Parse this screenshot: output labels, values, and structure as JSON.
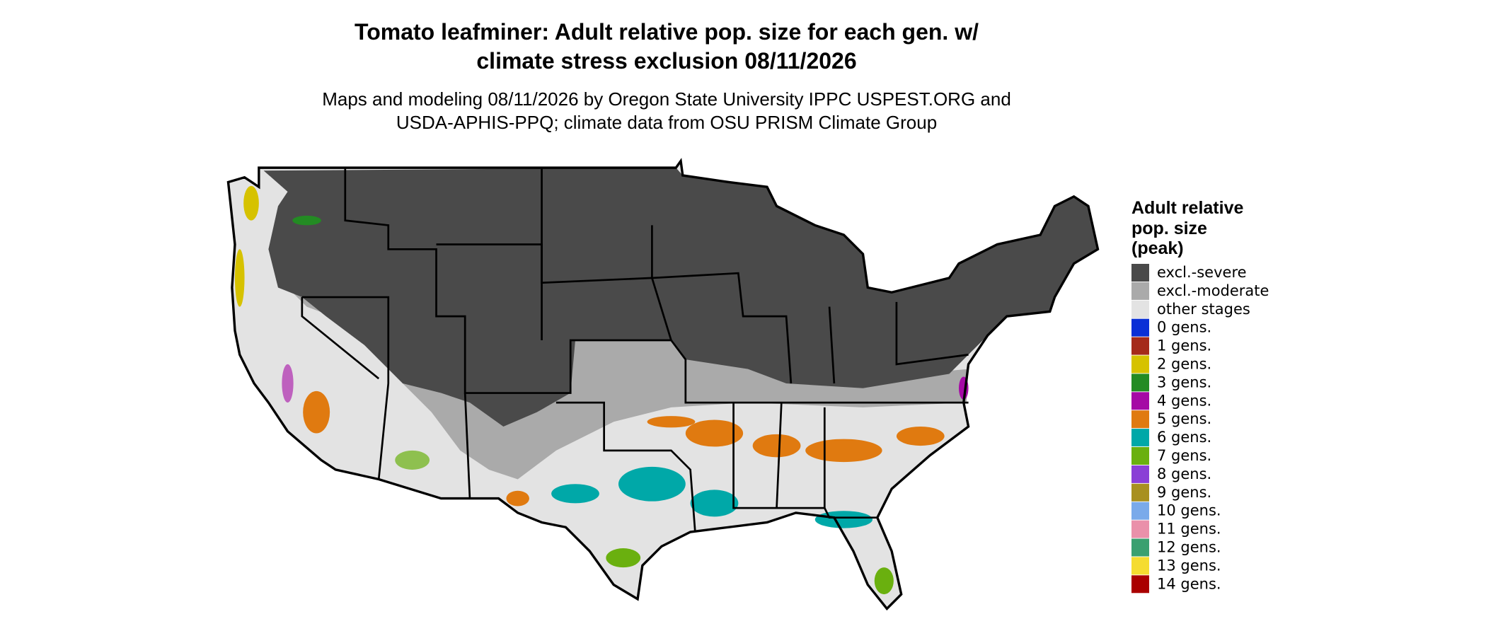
{
  "title": [
    "Tomato leafminer: Adult relative pop. size for each gen. w/",
    "climate stress exclusion 08/11/2026"
  ],
  "subtitle": [
    "Maps and modeling 08/11/2026 by Oregon State University IPPC USPEST.ORG and",
    "USDA-APHIS-PPQ; climate data from OSU PRISM Climate Group"
  ],
  "legend": {
    "title": [
      "Adult relative",
      "pop. size",
      "(peak)"
    ],
    "entries": [
      {
        "label": "excl.-severe",
        "color": "#4a4a4a"
      },
      {
        "label": "excl.-moderate",
        "color": "#aaaaaa"
      },
      {
        "label": "other stages",
        "color": "#e3e3e3"
      },
      {
        "label": "0 gens.",
        "color": "#0a2fd6"
      },
      {
        "label": "1 gens.",
        "color": "#a52a1a"
      },
      {
        "label": "2 gens.",
        "color": "#d6c200"
      },
      {
        "label": "3 gens.",
        "color": "#238b23"
      },
      {
        "label": "4 gens.",
        "color": "#a50aa5"
      },
      {
        "label": "5 gens.",
        "color": "#e07a10"
      },
      {
        "label": "6 gens.",
        "color": "#00a8a8"
      },
      {
        "label": "7 gens.",
        "color": "#6ab00f"
      },
      {
        "label": "8 gens.",
        "color": "#8a3fd6"
      },
      {
        "label": "9 gens.",
        "color": "#a89020"
      },
      {
        "label": "10 gens.",
        "color": "#7aaaea"
      },
      {
        "label": "11 gens.",
        "color": "#ea90aa"
      },
      {
        "label": "12 gens.",
        "color": "#3aa070"
      },
      {
        "label": "13 gens.",
        "color": "#f5dc30"
      },
      {
        "label": "14 gens.",
        "color": "#aa0000"
      }
    ]
  }
}
